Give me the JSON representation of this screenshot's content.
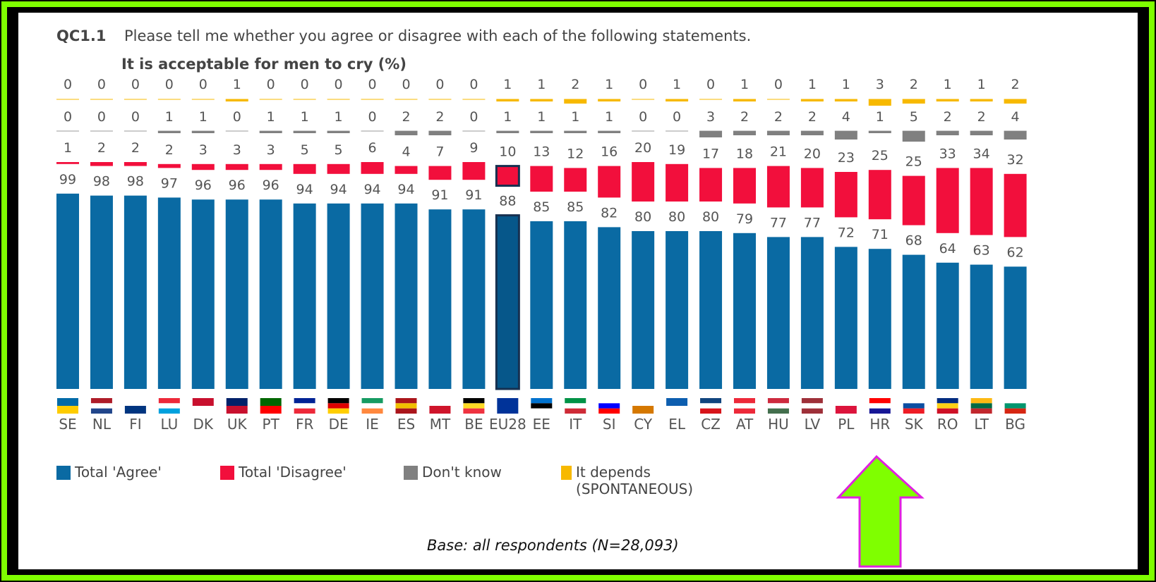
{
  "chart_data": {
    "type": "bar",
    "question": "QC1.1",
    "title": "Please tell me whether you agree or disagree with each of the following statements.",
    "subtitle": "It is acceptable for men to cry (%)",
    "categories": [
      "SE",
      "NL",
      "FI",
      "LU",
      "DK",
      "UK",
      "PT",
      "FR",
      "DE",
      "IE",
      "ES",
      "MT",
      "BE",
      "EU28",
      "EE",
      "IT",
      "SI",
      "CY",
      "EL",
      "CZ",
      "AT",
      "HU",
      "LV",
      "PL",
      "HR",
      "SK",
      "RO",
      "LT",
      "BG"
    ],
    "series": [
      {
        "name": "Total 'Agree'",
        "color": "#0a6aa3",
        "values": [
          99,
          98,
          98,
          97,
          96,
          96,
          96,
          94,
          94,
          94,
          94,
          91,
          91,
          88,
          85,
          85,
          82,
          80,
          80,
          80,
          79,
          77,
          77,
          72,
          71,
          68,
          64,
          63,
          62
        ]
      },
      {
        "name": "Total 'Disagree'",
        "color": "#f20f3c",
        "values": [
          1,
          2,
          2,
          2,
          3,
          3,
          3,
          5,
          5,
          6,
          4,
          7,
          9,
          10,
          13,
          12,
          16,
          20,
          19,
          17,
          18,
          21,
          20,
          23,
          25,
          25,
          33,
          34,
          32
        ]
      },
      {
        "name": "Don't know",
        "color": "#808080",
        "values": [
          0,
          0,
          0,
          1,
          1,
          0,
          1,
          1,
          1,
          0,
          2,
          2,
          0,
          1,
          1,
          1,
          1,
          0,
          0,
          3,
          2,
          2,
          2,
          4,
          1,
          5,
          2,
          2,
          4
        ]
      },
      {
        "name": "It depends (SPONTANEOUS)",
        "color": "#f7b900",
        "values": [
          0,
          0,
          0,
          0,
          0,
          1,
          0,
          0,
          0,
          0,
          0,
          0,
          0,
          1,
          1,
          2,
          1,
          0,
          1,
          0,
          1,
          0,
          1,
          1,
          3,
          2,
          1,
          1,
          2
        ]
      }
    ],
    "highlight": "EU28",
    "note": "Base: all respondents (N=28,093)"
  }
}
